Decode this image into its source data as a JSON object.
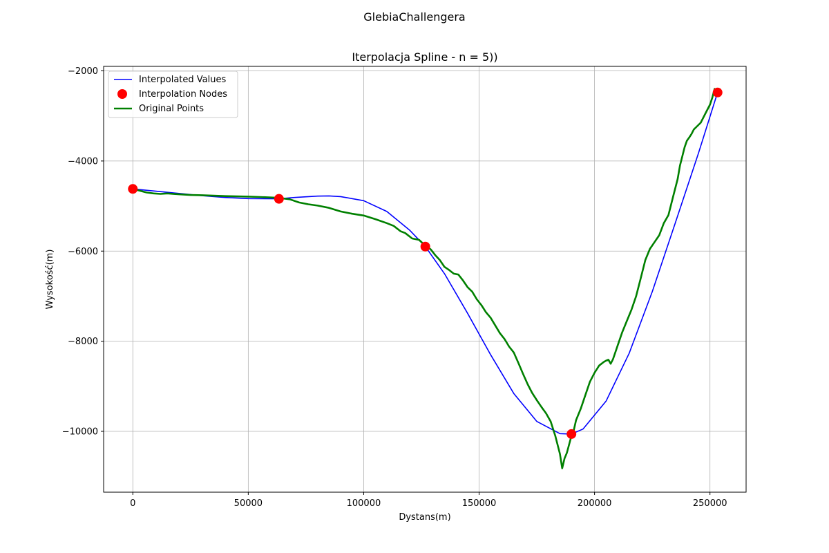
{
  "figure": {
    "suptitle": "GlebiaChallengera"
  },
  "chart_data": {
    "type": "line",
    "title": "Iterpolacja Spline - n = 5))",
    "xlabel": "Dystans(m)",
    "ylabel": "Wysokość(m)",
    "xlim": [
      -12650,
      265650
    ],
    "ylim": [
      -11350,
      -1900
    ],
    "xticks": [
      0,
      50000,
      100000,
      150000,
      200000,
      250000
    ],
    "yticks": [
      -10000,
      -8000,
      -6000,
      -4000,
      -2000
    ],
    "xtick_labels": [
      "0",
      "50000",
      "100000",
      "150000",
      "200000",
      "250000"
    ],
    "ytick_labels": [
      "−10000",
      "−8000",
      "−6000",
      "−4000",
      "−2000"
    ],
    "grid": true,
    "legend_position": "upper-left",
    "colors": {
      "interpolated": "#0000ff",
      "nodes": "#ff0000",
      "original": "#008000",
      "grid": "#b0b0b0"
    },
    "series": [
      {
        "name": "Interpolated Values",
        "kind": "line",
        "x": [
          0,
          10000,
          20000,
          30000,
          40000,
          50000,
          63300,
          70000,
          80000,
          85000,
          90000,
          100000,
          110000,
          120000,
          126700,
          135000,
          145000,
          155000,
          165000,
          175000,
          185000,
          190000,
          195000,
          205000,
          215000,
          225000,
          235000,
          245000,
          253300
        ],
        "y": [
          -4620,
          -4670,
          -4720,
          -4770,
          -4810,
          -4835,
          -4840,
          -4810,
          -4780,
          -4775,
          -4790,
          -4880,
          -5120,
          -5540,
          -5900,
          -6500,
          -7380,
          -8300,
          -9160,
          -9780,
          -10050,
          -10060,
          -9950,
          -9330,
          -8270,
          -6900,
          -5370,
          -3830,
          -2480
        ]
      },
      {
        "name": "Interpolation Nodes",
        "kind": "scatter",
        "x": [
          0,
          63300,
          126700,
          190000,
          253300
        ],
        "y": [
          -4620,
          -4840,
          -5900,
          -10060,
          -2480
        ]
      },
      {
        "name": "Original Points",
        "kind": "line",
        "x": [
          0,
          3000,
          6000,
          9000,
          12000,
          15000,
          20000,
          25000,
          30000,
          35000,
          40000,
          45000,
          50000,
          55000,
          60000,
          63300,
          68000,
          72000,
          76000,
          80000,
          85000,
          90000,
          95000,
          100000,
          105000,
          110000,
          113000,
          116000,
          118000,
          121000,
          124000,
          126700,
          129000,
          131000,
          133000,
          135000,
          137000,
          139000,
          141000,
          143000,
          145000,
          147000,
          149000,
          151000,
          153000,
          155000,
          157000,
          159000,
          161000,
          163000,
          165000,
          167000,
          169000,
          171000,
          173000,
          175000,
          177000,
          179000,
          181000,
          183000,
          185000,
          186000,
          187000,
          188000,
          190000,
          191000,
          192000,
          194000,
          196000,
          198000,
          200000,
          202000,
          204000,
          205000,
          206000,
          207000,
          208000,
          210000,
          212000,
          214000,
          216000,
          218000,
          220000,
          222000,
          224000,
          226000,
          228000,
          230000,
          232000,
          234000,
          236000,
          237000,
          238000,
          239000,
          240000,
          241000,
          242000,
          243000,
          244000,
          246000,
          248000,
          250000,
          251000,
          252000,
          253300
        ],
        "y": [
          -4620,
          -4660,
          -4700,
          -4720,
          -4730,
          -4720,
          -4740,
          -4755,
          -4760,
          -4770,
          -4780,
          -4785,
          -4790,
          -4800,
          -4810,
          -4820,
          -4850,
          -4920,
          -4960,
          -4990,
          -5040,
          -5120,
          -5170,
          -5210,
          -5290,
          -5380,
          -5440,
          -5560,
          -5600,
          -5720,
          -5750,
          -5880,
          -5960,
          -6090,
          -6200,
          -6350,
          -6420,
          -6500,
          -6520,
          -6650,
          -6800,
          -6900,
          -7070,
          -7200,
          -7360,
          -7480,
          -7650,
          -7820,
          -7950,
          -8120,
          -8250,
          -8480,
          -8720,
          -8950,
          -9150,
          -9310,
          -9460,
          -9600,
          -9780,
          -10100,
          -10500,
          -10820,
          -10600,
          -10480,
          -10100,
          -9980,
          -9750,
          -9500,
          -9200,
          -8900,
          -8700,
          -8540,
          -8460,
          -8430,
          -8410,
          -8500,
          -8400,
          -8100,
          -7800,
          -7550,
          -7300,
          -7000,
          -6600,
          -6200,
          -5950,
          -5800,
          -5650,
          -5380,
          -5200,
          -4800,
          -4400,
          -4100,
          -3900,
          -3700,
          -3550,
          -3480,
          -3400,
          -3300,
          -3250,
          -3150,
          -2950,
          -2750,
          -2600,
          -2400,
          -2480
        ]
      }
    ]
  }
}
